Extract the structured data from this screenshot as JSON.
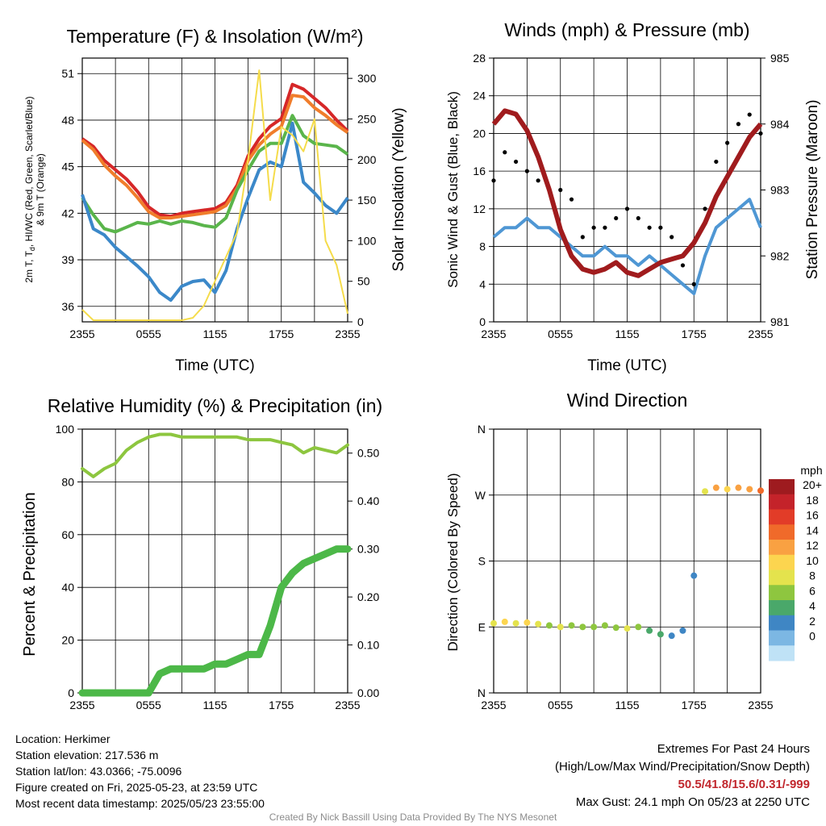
{
  "chart_data": [
    {
      "type": "line",
      "title": "Temperature (F) & Insolation (W/m²)",
      "xlabel": "Time (UTC)",
      "ylabel": "2m T, Td, HI/WC (Red, Green, Scarlet/Blue) & 9m T (Orange)",
      "ylabel_line1": "2m T, T",
      "ylabel_sub": "d",
      "ylabel_line1b": ", HI/WC (Red, Green, Scarlet/Blue)",
      "ylabel_line2": "& 9m T (Orange)",
      "y2label": "Solar Insolation (Yellow)",
      "x_ticks": [
        "2355",
        "0555",
        "1155",
        "1755",
        "2355"
      ],
      "ylim": [
        35,
        52
      ],
      "y_ticks": [
        "36",
        "39",
        "42",
        "45",
        "48",
        "51"
      ],
      "y2lim": [
        0,
        325
      ],
      "y2_ticks": [
        "0",
        "50",
        "100",
        "150",
        "200",
        "250",
        "300"
      ],
      "grid": true,
      "x": [
        0,
        1,
        2,
        3,
        4,
        5,
        6,
        7,
        8,
        9,
        10,
        11,
        12,
        13,
        14,
        15,
        16,
        17,
        18,
        19,
        20,
        21,
        22,
        23,
        24
      ],
      "series": [
        {
          "color": "#d62728",
          "width": 4,
          "axis": "left",
          "values": [
            46.8,
            46.3,
            45.4,
            44.8,
            44.2,
            43.4,
            42.4,
            41.9,
            41.8,
            42.0,
            42.1,
            42.2,
            42.3,
            42.7,
            43.8,
            45.7,
            46.8,
            47.6,
            48.1,
            50.3,
            50.0,
            49.4,
            48.8,
            48.0,
            47.3
          ]
        },
        {
          "color": "#f07d2b",
          "width": 4,
          "axis": "left",
          "values": [
            46.7,
            46.1,
            45.1,
            44.4,
            43.8,
            43.0,
            42.1,
            41.7,
            41.7,
            41.8,
            41.9,
            42.0,
            42.1,
            42.5,
            43.6,
            45.4,
            46.4,
            47.1,
            47.6,
            49.6,
            49.5,
            48.8,
            48.3,
            47.7,
            47.2
          ]
        },
        {
          "color": "#5ab54b",
          "width": 4,
          "axis": "left",
          "values": [
            43.0,
            41.9,
            41.0,
            40.8,
            41.1,
            41.4,
            41.3,
            41.5,
            41.3,
            41.5,
            41.4,
            41.2,
            41.1,
            41.7,
            43.5,
            44.8,
            46.0,
            46.5,
            46.5,
            48.3,
            47.0,
            46.5,
            46.4,
            46.3,
            45.8
          ]
        },
        {
          "color": "#3b88c9",
          "width": 4,
          "axis": "left",
          "values": [
            43.2,
            41.0,
            40.6,
            39.8,
            39.2,
            38.6,
            37.9,
            36.9,
            36.4,
            37.3,
            37.6,
            37.7,
            36.9,
            38.3,
            41.0,
            43.0,
            44.8,
            45.3,
            45.0,
            47.8,
            44.0,
            43.3,
            42.5,
            42.0,
            43.0
          ]
        },
        {
          "color": "#f5dc4b",
          "width": 2,
          "axis": "right",
          "values": [
            15,
            2,
            2,
            2,
            2,
            2,
            2,
            2,
            2,
            2,
            5,
            20,
            50,
            80,
            110,
            200,
            310,
            150,
            240,
            230,
            210,
            250,
            100,
            70,
            10
          ]
        }
      ]
    },
    {
      "type": "line",
      "title": "Winds (mph) & Pressure (mb)",
      "xlabel": "Time (UTC)",
      "ylabel": "Sonic Wind & Gust (Blue, Black)",
      "y2label": "Station Pressure (Maroon)",
      "x_ticks": [
        "2355",
        "0555",
        "1155",
        "1755",
        "2355"
      ],
      "ylim": [
        0,
        28
      ],
      "y_ticks": [
        "0",
        "4",
        "8",
        "12",
        "16",
        "20",
        "24",
        "28"
      ],
      "y2lim": [
        981,
        985
      ],
      "y2_ticks": [
        "981",
        "982",
        "983",
        "984",
        "985"
      ],
      "grid": true,
      "x": [
        0,
        1,
        2,
        3,
        4,
        5,
        6,
        7,
        8,
        9,
        10,
        11,
        12,
        13,
        14,
        15,
        16,
        17,
        18,
        19,
        20,
        21,
        22,
        23,
        24
      ],
      "series": [
        {
          "color": "#4f97d4",
          "kind": "line",
          "axis": "left",
          "values": [
            9,
            10,
            10,
            11,
            10,
            10,
            9,
            8,
            7,
            7,
            8,
            7,
            7,
            6,
            7,
            6,
            5,
            4,
            3,
            7,
            10,
            11,
            12,
            13,
            10
          ]
        },
        {
          "color": "#000000",
          "kind": "points",
          "axis": "left",
          "values": [
            15,
            18,
            17,
            16,
            15,
            14,
            14,
            13,
            9,
            10,
            10,
            11,
            12,
            11,
            10,
            10,
            9,
            6,
            4,
            12,
            17,
            19,
            21,
            22,
            20
          ]
        },
        {
          "color": "#a01b1d",
          "kind": "line",
          "width": 6,
          "axis": "right",
          "values": [
            984.0,
            984.2,
            984.15,
            983.9,
            983.5,
            983.0,
            982.4,
            982.0,
            981.8,
            981.75,
            981.8,
            981.9,
            981.75,
            981.7,
            981.8,
            981.9,
            981.95,
            982.0,
            982.2,
            982.5,
            982.9,
            983.2,
            983.5,
            983.8,
            984.0
          ]
        }
      ]
    },
    {
      "type": "line",
      "title": "Relative Humidity (%) & Precipitation (in)",
      "ylabel": "Percent & Precipitation",
      "x_ticks": [
        "2355",
        "0555",
        "1155",
        "1755",
        "2355"
      ],
      "ylim": [
        0,
        100
      ],
      "y_ticks": [
        "0",
        "20",
        "40",
        "60",
        "80",
        "100"
      ],
      "y2lim": [
        0,
        0.55
      ],
      "y2_ticks": [
        "0.00",
        "0.10",
        "0.20",
        "0.30",
        "0.40",
        "0.50"
      ],
      "grid": true,
      "x": [
        0,
        1,
        2,
        3,
        4,
        5,
        6,
        7,
        8,
        9,
        10,
        11,
        12,
        13,
        14,
        15,
        16,
        17,
        18,
        19,
        20,
        21,
        22,
        23,
        24
      ],
      "series": [
        {
          "color": "#8dc63f",
          "width": 4,
          "axis": "left",
          "values": [
            85,
            82,
            85,
            87,
            92,
            95,
            97,
            98,
            98,
            97,
            97,
            97,
            97,
            97,
            97,
            96,
            96,
            96,
            95,
            94,
            91,
            93,
            92,
            91,
            94
          ]
        },
        {
          "color": "#4cb848",
          "width": 9,
          "axis": "right",
          "values": [
            0,
            0,
            0,
            0,
            0,
            0,
            0,
            0.04,
            0.05,
            0.05,
            0.05,
            0.05,
            0.06,
            0.06,
            0.07,
            0.08,
            0.08,
            0.14,
            0.22,
            0.25,
            0.27,
            0.28,
            0.29,
            0.3,
            0.3
          ]
        }
      ]
    },
    {
      "type": "scatter",
      "title": "Wind Direction",
      "ylabel": "Direction (Colored By Speed)",
      "x_ticks": [
        "2355",
        "0555",
        "1155",
        "1755",
        "2355"
      ],
      "y_ticks": [
        "N",
        "E",
        "S",
        "W",
        "N"
      ],
      "ylim": [
        0,
        360
      ],
      "grid": true,
      "x": [
        0,
        1,
        2,
        3,
        4,
        5,
        6,
        7,
        8,
        9,
        10,
        11,
        12,
        13,
        14,
        15,
        16,
        17,
        18,
        19,
        20,
        21,
        22,
        23,
        24
      ],
      "values": [
        95,
        97,
        95,
        96,
        94,
        92,
        90,
        92,
        90,
        90,
        92,
        89,
        88,
        90,
        85,
        80,
        78,
        85,
        160,
        275,
        280,
        278,
        280,
        278,
        276
      ],
      "speeds": [
        9,
        10,
        8,
        10,
        9,
        6,
        8,
        7,
        6,
        7,
        7,
        7,
        8,
        6,
        5,
        4,
        3,
        2,
        3,
        8,
        12,
        11,
        12,
        13,
        14
      ],
      "colorbar_title": "mph",
      "colorbar_labels": [
        "20+",
        "18",
        "16",
        "14",
        "12",
        "10",
        "8",
        "6",
        "4",
        "2",
        "0"
      ],
      "colorbar_colors": [
        "#9e1b1f",
        "#c4232a",
        "#e23c28",
        "#f06a2a",
        "#f9a142",
        "#fcd54f",
        "#e4e34d",
        "#8ec63f",
        "#4aa86a",
        "#3f86c4",
        "#7cb7e3",
        "#bfe2f6"
      ]
    }
  ],
  "info": {
    "location": "Location: Herkimer",
    "elevation": "Station elevation: 217.536 m",
    "latlon": "Station lat/lon: 43.0366; -75.0096",
    "created": "Figure created on Fri, 2025-05-23, at 23:59 UTC",
    "recent": "Most recent data timestamp: 2025/05/23 23:55:00"
  },
  "extremes": {
    "title": "Extremes For Past 24 Hours",
    "subtitle": "(High/Low/Max Wind/Precipitation/Snow Depth)",
    "values": "50.5/41.8/15.6/0.31/-999",
    "max_gust": "Max Gust: 24.1 mph On 05/23 at 2250 UTC"
  },
  "credit": "Created By Nick Bassill Using Data Provided By The NYS Mesonet"
}
